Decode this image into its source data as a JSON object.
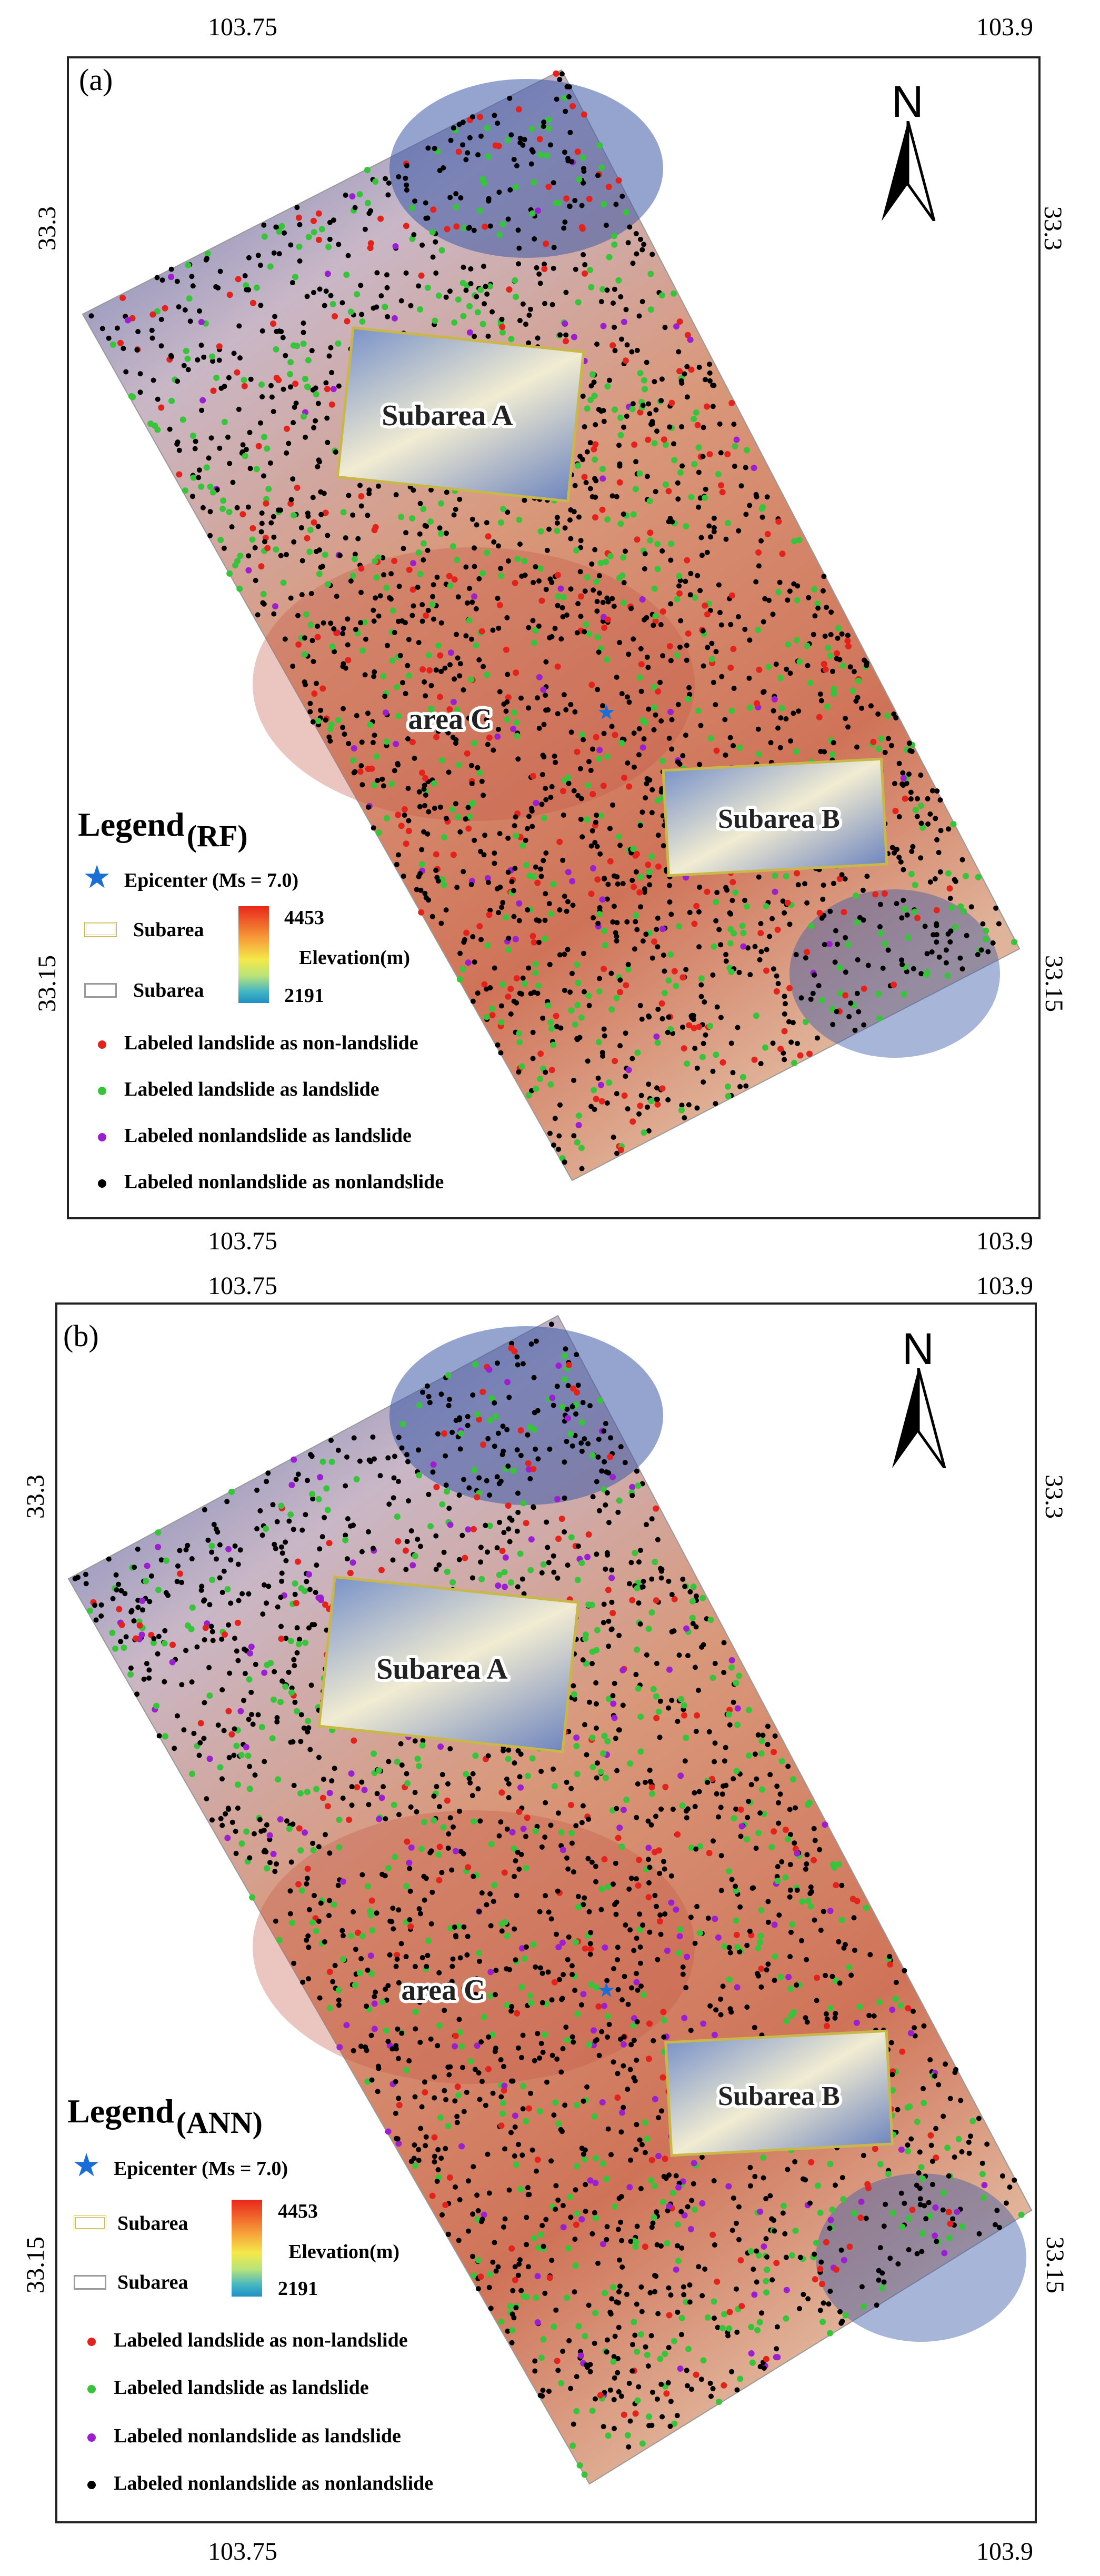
{
  "panels": [
    {
      "panel_label": "(a)",
      "model": "(RF)",
      "lon_ticks": [
        "103.75",
        "103.9"
      ],
      "lat_ticks": [
        "33.3",
        "33.15"
      ]
    },
    {
      "panel_label": "(b)",
      "model": "(ANN)",
      "lon_ticks": [
        "103.75",
        "103.9"
      ],
      "lat_ticks": [
        "33.3",
        "33.15"
      ]
    }
  ],
  "north_arrow": {
    "letter": "N",
    "icon": "north-arrow-icon"
  },
  "map_labels": {
    "subarea_a": "Subarea A",
    "subarea_b": "Subarea B",
    "area_c": "area C"
  },
  "legend": {
    "title": "Legend",
    "epicenter": "Epicenter (Ms = 7.0)",
    "subarea_yellow": "Subarea",
    "subarea_gray": "Subarea",
    "elevation_max": "4453",
    "elevation_min": "2191",
    "elevation_label": "Elevation(m)",
    "classes": [
      {
        "label": "Labeled landslide as non-landslide",
        "color": "#e3231b"
      },
      {
        "label": "Labeled landslide as landslide",
        "color": "#35c43a"
      },
      {
        "label": "Labeled nonlandslide as landslide",
        "color": "#9b1fd0"
      },
      {
        "label": "Labeled nonlandslide as nonlandslide",
        "color": "#000000"
      }
    ]
  },
  "colors": {
    "elevation_high": "#e8271b",
    "elevation_low": "#1f8fc4",
    "low_terrain": "#d07a5e",
    "high_terrain": "#5a74b8",
    "epicenter": "#1a6fd6",
    "subarea_border_yellow": "#c9b74a",
    "subarea_border_gray": "#9a9a9a"
  }
}
